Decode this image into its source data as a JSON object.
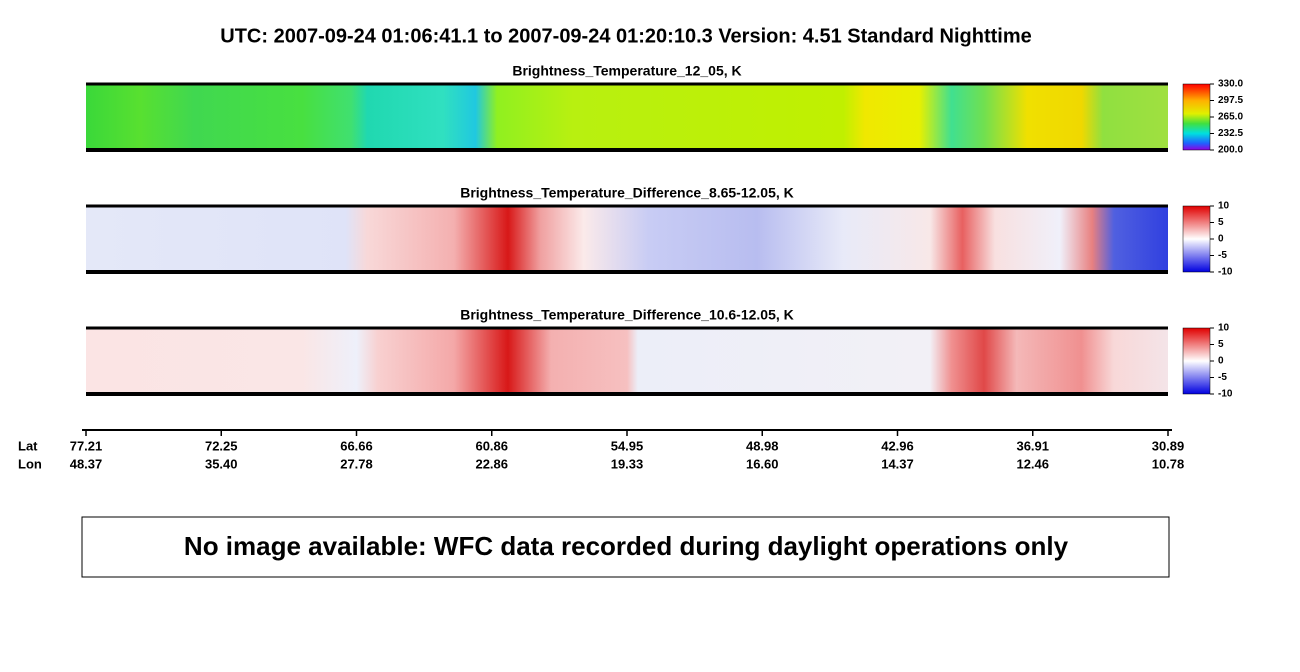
{
  "header": {
    "title": "UTC:  2007-09-24   01:06:41.1  to  2007-09-24   01:20:10.3    Version: 4.51  Standard Nighttime"
  },
  "panels": [
    {
      "title": "Brightness_Temperature_12_05, K",
      "colorbar_ticks": [
        "330.0",
        "297.5",
        "265.0",
        "232.5",
        "200.0"
      ]
    },
    {
      "title": "Brightness_Temperature_Difference_8.65-12.05, K",
      "colorbar_ticks": [
        "10",
        "5",
        "0",
        "-5",
        "-10"
      ]
    },
    {
      "title": "Brightness_Temperature_Difference_10.6-12.05, K",
      "colorbar_ticks": [
        "10",
        "5",
        "0",
        "-5",
        "-10"
      ]
    }
  ],
  "axis": {
    "row_labels": [
      "Lat",
      "Lon"
    ],
    "lat": [
      "77.21",
      "72.25",
      "66.66",
      "60.86",
      "54.95",
      "48.98",
      "42.96",
      "36.91",
      "30.89"
    ],
    "lon": [
      "48.37",
      "35.40",
      "27.78",
      "22.86",
      "19.33",
      "16.60",
      "14.37",
      "12.46",
      "10.78"
    ]
  },
  "message": "No image available: WFC data recorded during daylight operations only"
}
